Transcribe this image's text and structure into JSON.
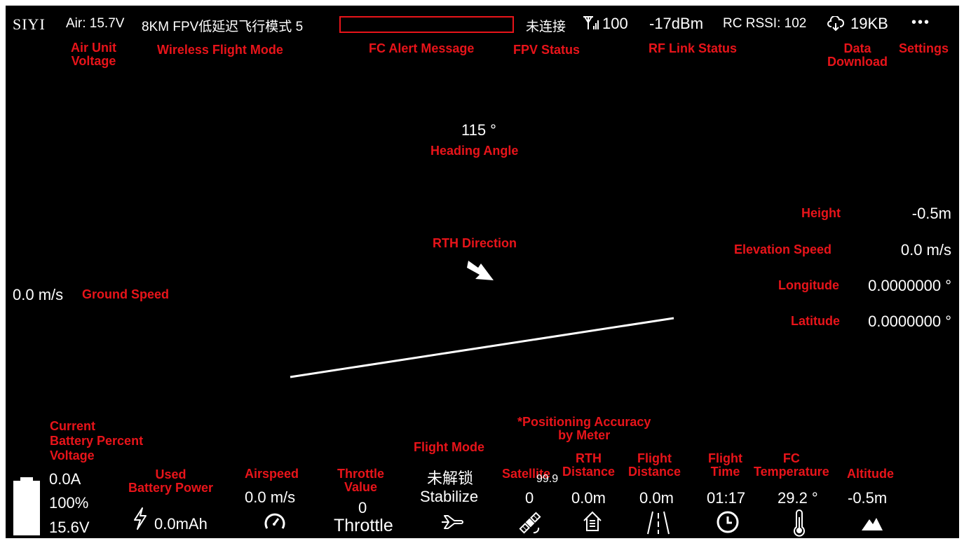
{
  "status_bar": {
    "logo": "SIYI",
    "air_voltage": "Air: 15.7V",
    "flight_mode_text": "8KM FPV低延迟飞行模式 5",
    "connection": "未连接",
    "signal_value": "100",
    "dbm": "-17dBm",
    "rc_rssi": "RC RSSI: 102",
    "download": "19KB",
    "more": "•••"
  },
  "annotations": {
    "air_unit_voltage": "Air Unit\nVoltage",
    "wireless_flight_mode": "Wireless Flight Mode",
    "fc_alert_message": "FC Alert Message",
    "fpv_status": "FPV Status",
    "rf_link_status": "RF Link Status",
    "data_download": "Data\nDownload",
    "settings": "Settings",
    "heading_angle": "Heading Angle",
    "rth_direction": "RTH Direction",
    "ground_speed": "Ground Speed",
    "height": "Height",
    "elevation_speed": "Elevation Speed",
    "longitude": "Longitude",
    "latitude": "Latitude",
    "battery": "Current\nBattery Percent\nVoltage",
    "used_battery": "Used\nBattery Power",
    "airspeed": "Airspeed",
    "throttle": "Throttle\nValue",
    "flight_mode": "Flight Mode",
    "positioning_accuracy": "*Positioning Accuracy\nby Meter",
    "satellite": "Satellite",
    "rth_distance": "RTH\nDistance",
    "flight_distance": "Flight\nDistance",
    "flight_time": "Flight\nTime",
    "fc_temperature": "FC\nTemperature",
    "altitude": "Altitude"
  },
  "hud": {
    "heading": "115 °",
    "ground_speed": "0.0 m/s",
    "height": "-0.5m",
    "elevation_speed": "0.0 m/s",
    "longitude": "0.0000000 °",
    "latitude": "0.0000000 °"
  },
  "bottom": {
    "current": "0.0A",
    "battery_percent": "100%",
    "voltage": "15.6V",
    "used_battery": "0.0mAh",
    "airspeed": "0.0 m/s",
    "throttle_value": "0",
    "throttle_label": "Throttle",
    "arm_status": "未解锁",
    "flight_mode": "Stabilize",
    "satellite_count": "0",
    "positioning_accuracy": "99.9",
    "rth_distance": "0.0m",
    "flight_distance": "0.0m",
    "flight_time": "01:17",
    "fc_temperature": "29.2 °",
    "altitude": "-0.5m"
  },
  "colors": {
    "background": "#000000",
    "text": "#ffffff",
    "annotation": "#e8141a"
  },
  "icons": [
    "signal-tower-icon",
    "cloud-download-icon",
    "battery-icon",
    "lightning-icon",
    "speedometer-icon",
    "airplane-icon",
    "satellite-icon",
    "home-icon",
    "road-icon",
    "clock-icon",
    "thermometer-icon",
    "mountain-icon",
    "rth-arrow-icon"
  ]
}
